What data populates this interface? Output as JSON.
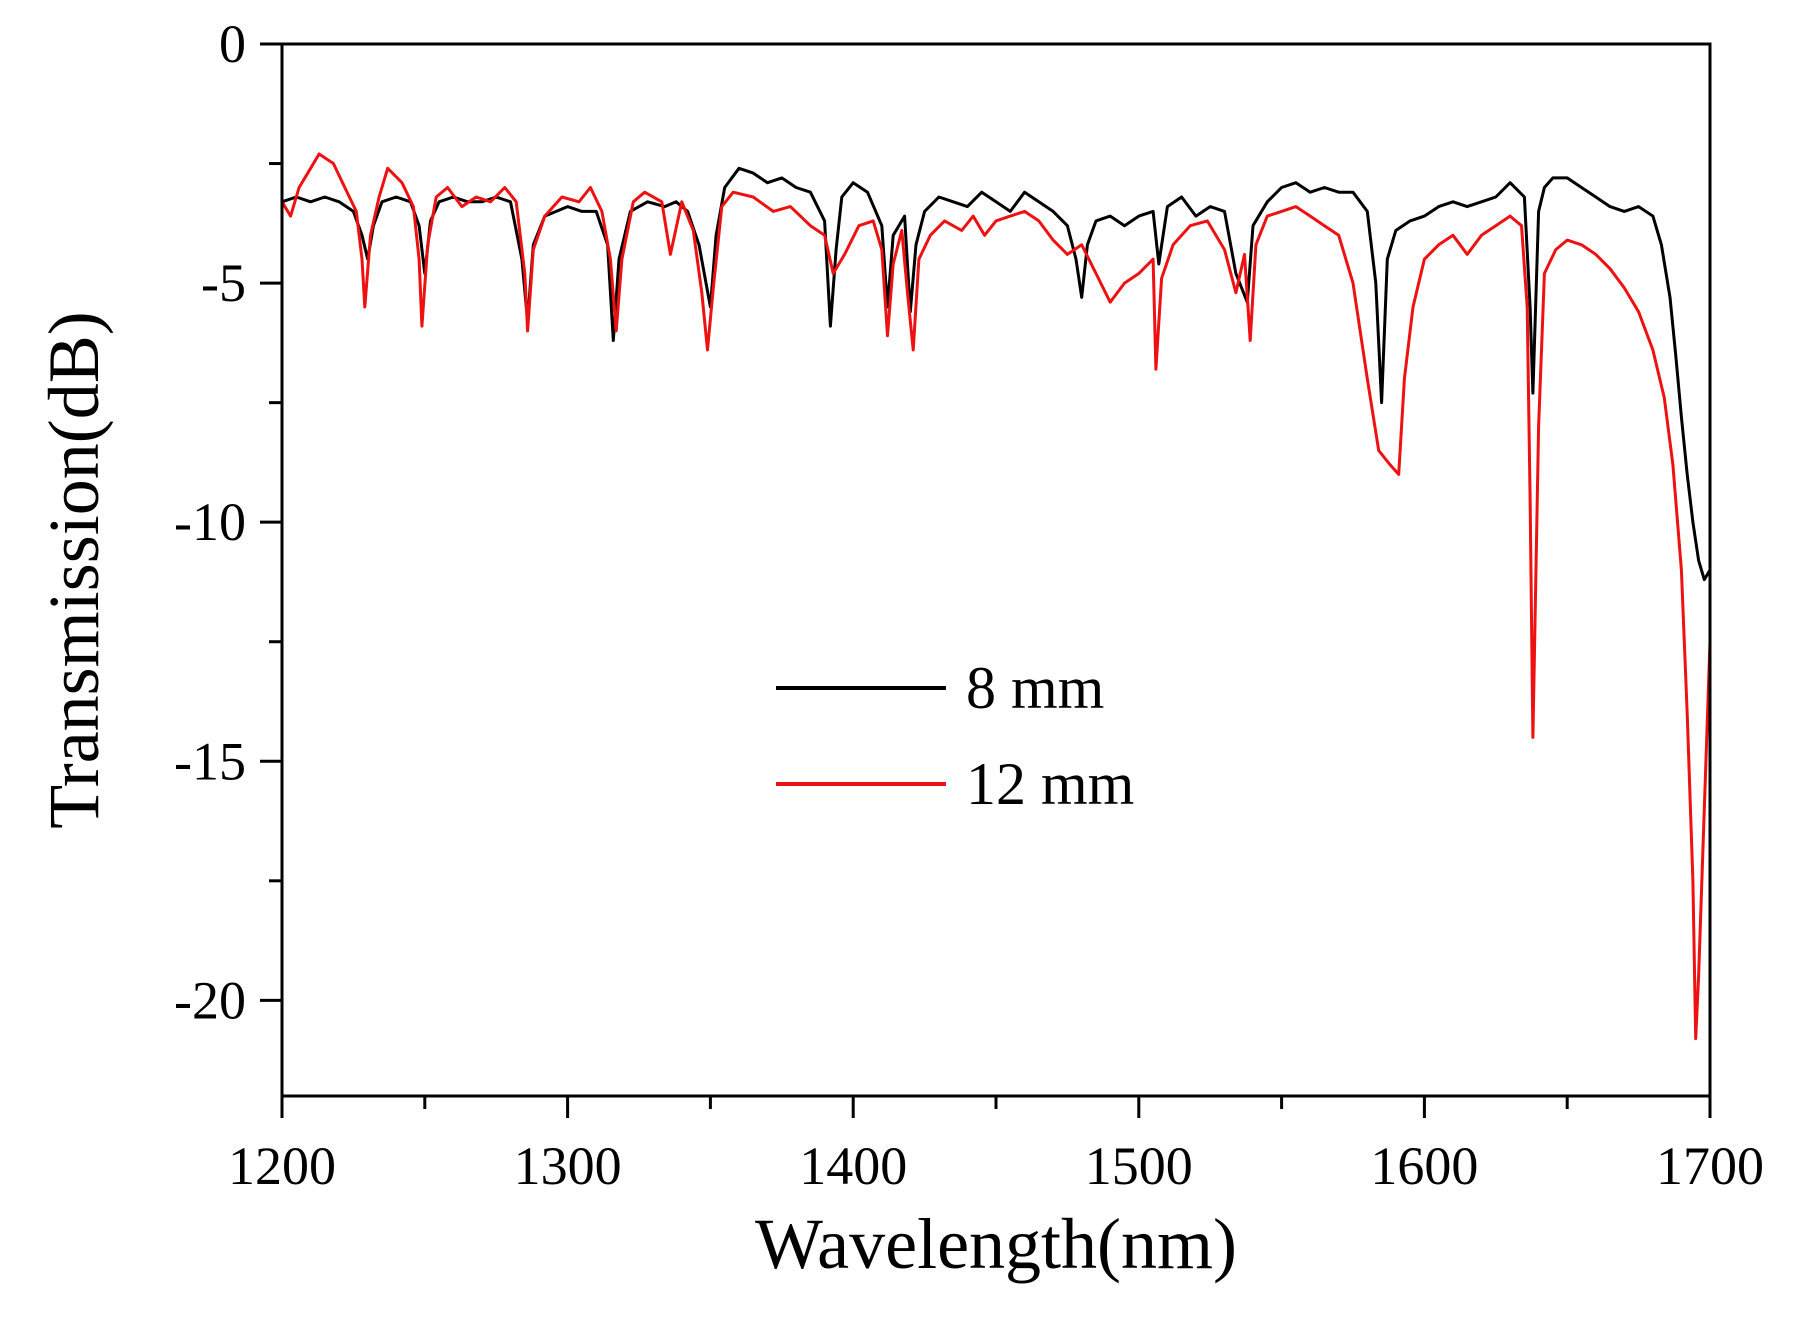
{
  "chart_data": {
    "type": "line",
    "title": "",
    "xlabel": "Wavelength(nm)",
    "ylabel": "Transmission(dB)",
    "xlim": [
      1200,
      1700
    ],
    "ylim": [
      -22,
      0
    ],
    "x_ticks": [
      1200,
      1300,
      1400,
      1500,
      1600,
      1700
    ],
    "x_tick_labels": [
      "1200",
      "1300",
      "1400",
      "1500",
      "1600",
      "1700"
    ],
    "x_minor_ticks": [
      1250,
      1350,
      1450,
      1550,
      1650
    ],
    "y_ticks": [
      0,
      -5,
      -10,
      -15,
      -20
    ],
    "y_tick_labels": [
      "0",
      "-5",
      "-10",
      "-15",
      "-20"
    ],
    "y_minor_ticks": [
      -2.5,
      -7.5,
      -12.5,
      -17.5
    ],
    "grid": false,
    "legend_position": "center",
    "series": [
      {
        "name": "8 mm",
        "color": "#000000",
        "x": [
          1200,
          1205,
          1210,
          1215,
          1220,
          1225,
          1228,
          1230,
          1232,
          1235,
          1240,
          1245,
          1248,
          1250,
          1252,
          1255,
          1260,
          1265,
          1270,
          1275,
          1280,
          1284,
          1286,
          1288,
          1292,
          1296,
          1300,
          1305,
          1310,
          1314,
          1316,
          1318,
          1322,
          1328,
          1334,
          1338,
          1342,
          1346,
          1350,
          1352,
          1355,
          1360,
          1365,
          1370,
          1375,
          1380,
          1385,
          1390,
          1392,
          1394,
          1396,
          1400,
          1405,
          1410,
          1412,
          1414,
          1418,
          1420,
          1422,
          1425,
          1430,
          1435,
          1440,
          1445,
          1450,
          1455,
          1460,
          1465,
          1470,
          1475,
          1478,
          1480,
          1482,
          1485,
          1490,
          1495,
          1500,
          1505,
          1507,
          1510,
          1515,
          1520,
          1525,
          1530,
          1534,
          1538,
          1540,
          1545,
          1550,
          1555,
          1560,
          1565,
          1570,
          1575,
          1580,
          1583,
          1585,
          1587,
          1590,
          1595,
          1600,
          1605,
          1610,
          1615,
          1620,
          1625,
          1630,
          1635,
          1637,
          1638,
          1640,
          1642,
          1645,
          1650,
          1655,
          1660,
          1665,
          1670,
          1675,
          1680,
          1683,
          1686,
          1688,
          1690,
          1692,
          1694,
          1696,
          1698,
          1700
        ],
        "y": [
          -3.3,
          -3.2,
          -3.3,
          -3.2,
          -3.3,
          -3.5,
          -4.0,
          -4.5,
          -3.8,
          -3.3,
          -3.2,
          -3.3,
          -3.8,
          -4.8,
          -3.7,
          -3.3,
          -3.2,
          -3.3,
          -3.3,
          -3.2,
          -3.3,
          -4.5,
          -5.8,
          -4.2,
          -3.6,
          -3.5,
          -3.4,
          -3.5,
          -3.5,
          -4.2,
          -6.2,
          -4.5,
          -3.5,
          -3.3,
          -3.4,
          -3.3,
          -3.5,
          -4.2,
          -5.5,
          -4.0,
          -3.0,
          -2.6,
          -2.7,
          -2.9,
          -2.8,
          -3.0,
          -3.1,
          -3.7,
          -5.9,
          -4.3,
          -3.2,
          -2.9,
          -3.1,
          -3.8,
          -5.5,
          -4.0,
          -3.6,
          -5.6,
          -4.2,
          -3.5,
          -3.2,
          -3.3,
          -3.4,
          -3.1,
          -3.3,
          -3.5,
          -3.1,
          -3.3,
          -3.5,
          -3.8,
          -4.5,
          -5.3,
          -4.2,
          -3.7,
          -3.6,
          -3.8,
          -3.6,
          -3.5,
          -4.6,
          -3.4,
          -3.2,
          -3.6,
          -3.4,
          -3.5,
          -4.8,
          -5.4,
          -3.8,
          -3.3,
          -3.0,
          -2.9,
          -3.1,
          -3.0,
          -3.1,
          -3.1,
          -3.5,
          -5.0,
          -7.5,
          -4.5,
          -3.9,
          -3.7,
          -3.6,
          -3.4,
          -3.3,
          -3.4,
          -3.3,
          -3.2,
          -2.9,
          -3.2,
          -5.5,
          -7.3,
          -3.5,
          -3.0,
          -2.8,
          -2.8,
          -3.0,
          -3.2,
          -3.4,
          -3.5,
          -3.4,
          -3.6,
          -4.2,
          -5.3,
          -6.5,
          -7.8,
          -9.0,
          -10.0,
          -10.8,
          -11.2,
          -11.0
        ]
      },
      {
        "name": "12 mm",
        "color": "#ee1111",
        "x": [
          1200,
          1203,
          1206,
          1210,
          1213,
          1218,
          1222,
          1226,
          1228,
          1229,
          1231,
          1234,
          1237,
          1242,
          1246,
          1248,
          1249,
          1251,
          1254,
          1258,
          1263,
          1268,
          1273,
          1278,
          1282,
          1285,
          1286,
          1288,
          1292,
          1298,
          1304,
          1308,
          1312,
          1315,
          1317,
          1319,
          1323,
          1327,
          1333,
          1336,
          1340,
          1344,
          1347,
          1349,
          1351,
          1354,
          1358,
          1365,
          1372,
          1378,
          1385,
          1390,
          1393,
          1397,
          1402,
          1407,
          1410,
          1412,
          1414,
          1417,
          1419,
          1421,
          1423,
          1427,
          1432,
          1438,
          1442,
          1446,
          1450,
          1455,
          1460,
          1465,
          1470,
          1475,
          1480,
          1485,
          1490,
          1495,
          1500,
          1505,
          1506,
          1508,
          1512,
          1518,
          1524,
          1530,
          1534,
          1537,
          1539,
          1541,
          1545,
          1550,
          1555,
          1560,
          1565,
          1570,
          1575,
          1580,
          1584,
          1588,
          1591,
          1593,
          1596,
          1600,
          1605,
          1610,
          1615,
          1620,
          1625,
          1630,
          1634,
          1636,
          1637,
          1638,
          1640,
          1642,
          1646,
          1650,
          1655,
          1660,
          1665,
          1670,
          1675,
          1680,
          1684,
          1687,
          1690,
          1692,
          1694,
          1695,
          1696,
          1698,
          1700
        ],
        "y": [
          -3.3,
          -3.6,
          -3.0,
          -2.6,
          -2.3,
          -2.5,
          -3.0,
          -3.5,
          -4.5,
          -5.5,
          -4.0,
          -3.2,
          -2.6,
          -2.9,
          -3.4,
          -4.5,
          -5.9,
          -4.2,
          -3.2,
          -3.0,
          -3.4,
          -3.2,
          -3.3,
          -3.0,
          -3.3,
          -4.8,
          -6.0,
          -4.3,
          -3.6,
          -3.2,
          -3.3,
          -3.0,
          -3.5,
          -4.5,
          -6.0,
          -4.5,
          -3.3,
          -3.1,
          -3.3,
          -4.4,
          -3.3,
          -3.9,
          -5.2,
          -6.4,
          -5.1,
          -3.4,
          -3.1,
          -3.2,
          -3.5,
          -3.4,
          -3.8,
          -4.0,
          -4.8,
          -4.4,
          -3.8,
          -3.7,
          -4.3,
          -6.1,
          -4.6,
          -3.9,
          -5.2,
          -6.4,
          -4.5,
          -4.0,
          -3.7,
          -3.9,
          -3.6,
          -4.0,
          -3.7,
          -3.6,
          -3.5,
          -3.7,
          -4.1,
          -4.4,
          -4.2,
          -4.8,
          -5.4,
          -5.0,
          -4.8,
          -4.5,
          -6.8,
          -4.9,
          -4.2,
          -3.8,
          -3.7,
          -4.3,
          -5.2,
          -4.4,
          -6.2,
          -4.2,
          -3.6,
          -3.5,
          -3.4,
          -3.6,
          -3.8,
          -4.0,
          -5.0,
          -7.0,
          -8.5,
          -8.8,
          -9.0,
          -7.0,
          -5.5,
          -4.5,
          -4.2,
          -4.0,
          -4.4,
          -4.0,
          -3.8,
          -3.6,
          -3.8,
          -5.5,
          -9.5,
          -14.5,
          -8.0,
          -4.8,
          -4.3,
          -4.1,
          -4.2,
          -4.4,
          -4.7,
          -5.1,
          -5.6,
          -6.4,
          -7.4,
          -8.8,
          -11.0,
          -14.0,
          -17.5,
          -20.8,
          -19.5,
          -16.0,
          -12.5
        ]
      }
    ]
  }
}
